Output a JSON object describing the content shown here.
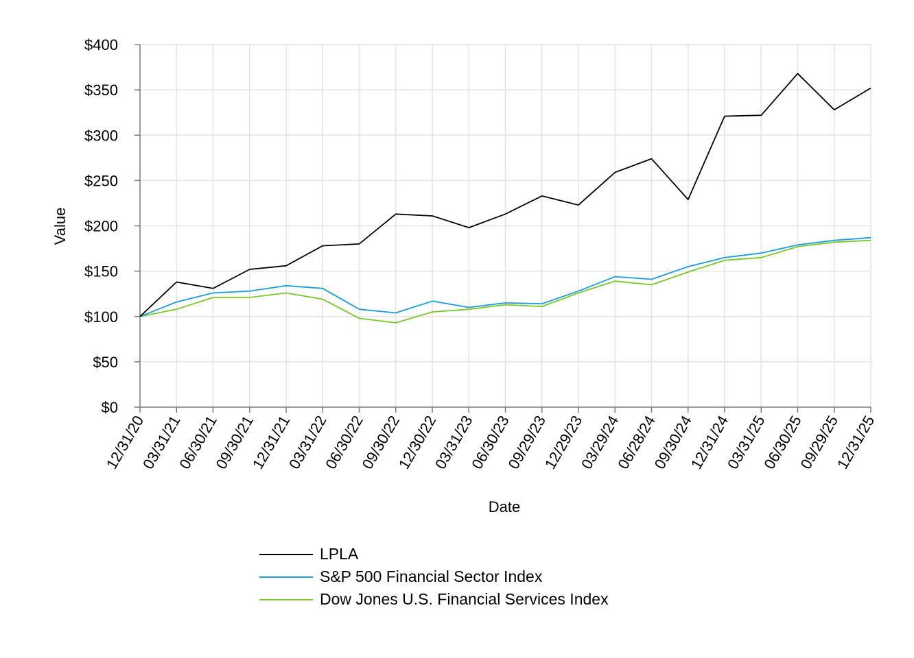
{
  "chart_data": {
    "type": "line",
    "xlabel": "Date",
    "ylabel": "Value",
    "ylim": [
      0,
      400
    ],
    "ytick_values": [
      0,
      50,
      100,
      150,
      200,
      250,
      300,
      350,
      400
    ],
    "ytick_labels": [
      "$0",
      "$50",
      "$100",
      "$150",
      "$200",
      "$250",
      "$300",
      "$350",
      "$400"
    ],
    "categories": [
      "12/31/20",
      "03/31/21",
      "06/30/21",
      "09/30/21",
      "12/31/21",
      "03/31/22",
      "06/30/22",
      "09/30/22",
      "12/30/22",
      "03/31/23",
      "06/30/23",
      "09/29/23",
      "12/29/23",
      "03/29/24",
      "06/28/24",
      "09/30/24",
      "12/31/24",
      "03/31/25",
      "06/30/25",
      "09/29/25",
      "12/31/25"
    ],
    "grid": true,
    "legend_position": "bottom",
    "series": [
      {
        "name": "LPLA",
        "color": "#000000",
        "values": [
          100,
          138,
          131,
          152,
          156,
          178,
          180,
          213,
          211,
          198,
          213,
          233,
          223,
          259,
          274,
          229,
          321,
          322,
          368,
          328,
          352
        ]
      },
      {
        "name": "S&P 500 Financial Sector Index",
        "color": "#1a9ce0",
        "values": [
          100,
          116,
          126,
          128,
          134,
          131,
          108,
          104,
          117,
          110,
          115,
          114,
          128,
          144,
          141,
          155,
          165,
          170,
          179,
          184,
          187
        ]
      },
      {
        "name": "Dow Jones U.S. Financial Services Index",
        "color": "#77c926",
        "values": [
          100,
          108,
          121,
          121,
          126,
          119,
          98,
          93,
          105,
          108,
          113,
          111,
          126,
          139,
          135,
          149,
          162,
          165,
          177,
          182,
          184
        ]
      }
    ]
  }
}
